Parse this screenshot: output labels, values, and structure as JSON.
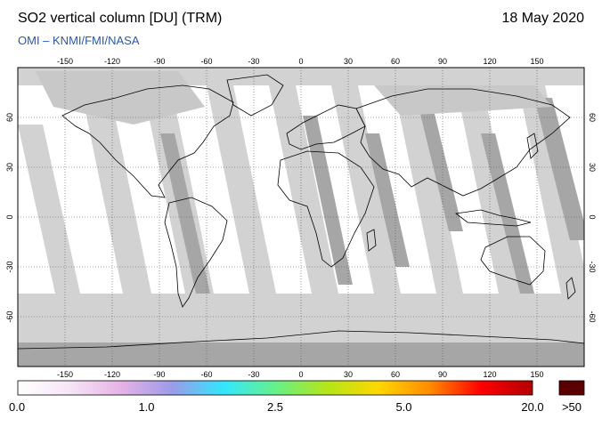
{
  "header": {
    "title": "SO2 vertical column [DU] (TRM)",
    "date": "18 May 2020",
    "credit": "OMI  –  KNMI/FMI/NASA"
  },
  "map": {
    "projection": "equirectangular",
    "lon_range": [
      -180,
      180
    ],
    "lat_range": [
      -90,
      90
    ],
    "lon_ticks": [
      "-150",
      "-120",
      "-90",
      "-60",
      "-30",
      "0",
      "30",
      "60",
      "90",
      "120",
      "150"
    ],
    "lat_ticks": [
      "60",
      "30",
      "0",
      "-30",
      "-60"
    ],
    "colors": {
      "no_data": "#d2d2d2",
      "overlap": "#a6a6a6",
      "polar": "#a6a6a6",
      "background": "#ffffff",
      "coastline": "#000000"
    }
  },
  "colorbar": {
    "labels": [
      "0.0",
      "1.0",
      "2.5",
      "5.0",
      "20.0"
    ],
    "over_label": ">50",
    "over_color": "#5a0000",
    "gradient": [
      "#ffffff",
      "#f6e6f6",
      "#e6b3e6",
      "#9b9bea",
      "#33e6ff",
      "#66f08a",
      "#b3e619",
      "#ffd700",
      "#ff8c00",
      "#ff0000",
      "#b30000"
    ]
  }
}
